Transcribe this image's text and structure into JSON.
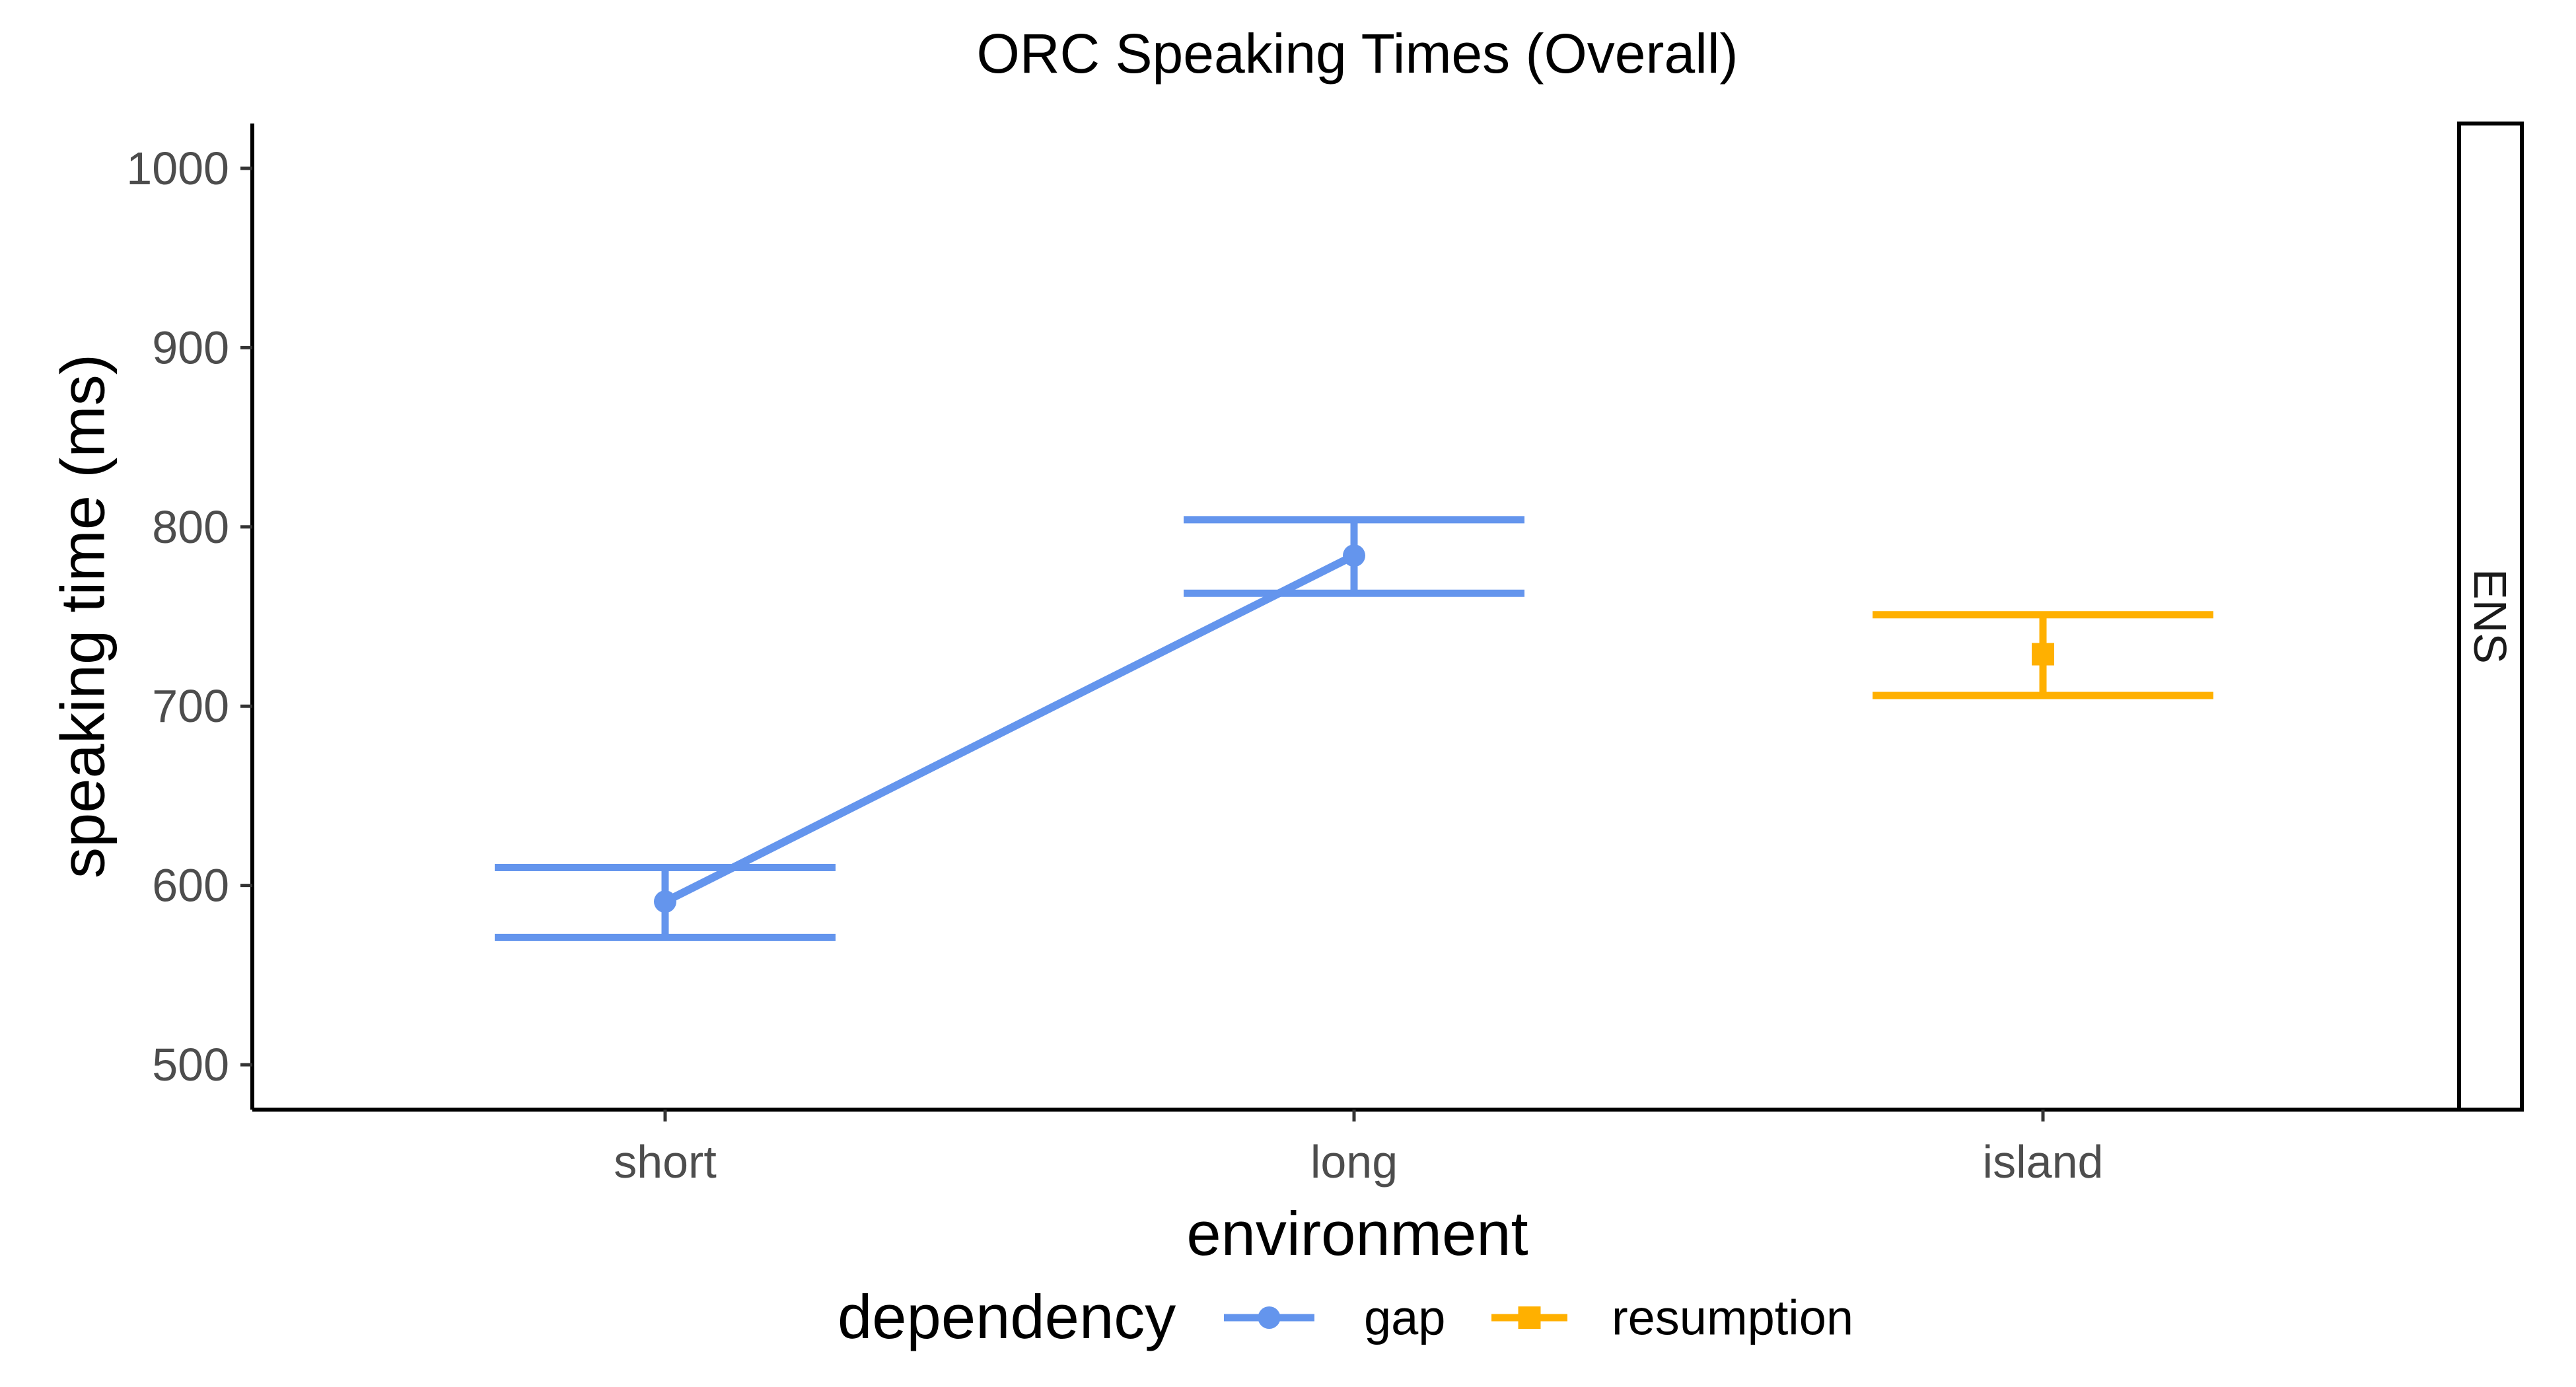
{
  "chart_data": {
    "type": "line",
    "title": "ORC Speaking Times (Overall)",
    "xlabel": "environment",
    "ylabel": "speaking time (ms)",
    "categories": [
      "short",
      "long",
      "island"
    ],
    "ylim": [
      475,
      1025
    ],
    "yticks": [
      500,
      600,
      700,
      800,
      900,
      1000
    ],
    "grid": false,
    "facet_label": "ENS",
    "legend": {
      "title": "dependency",
      "position": "bottom"
    },
    "series": [
      {
        "name": "gap",
        "color": "#6495ED",
        "marker": "circle",
        "points": [
          {
            "x": "short",
            "y": 591,
            "ymin": 571,
            "ymax": 610
          },
          {
            "x": "long",
            "y": 784,
            "ymin": 763,
            "ymax": 804
          }
        ]
      },
      {
        "name": "resumption",
        "color": "#FFB000",
        "marker": "square",
        "points": [
          {
            "x": "island",
            "y": 729,
            "ymin": 706,
            "ymax": 751
          }
        ]
      }
    ]
  }
}
